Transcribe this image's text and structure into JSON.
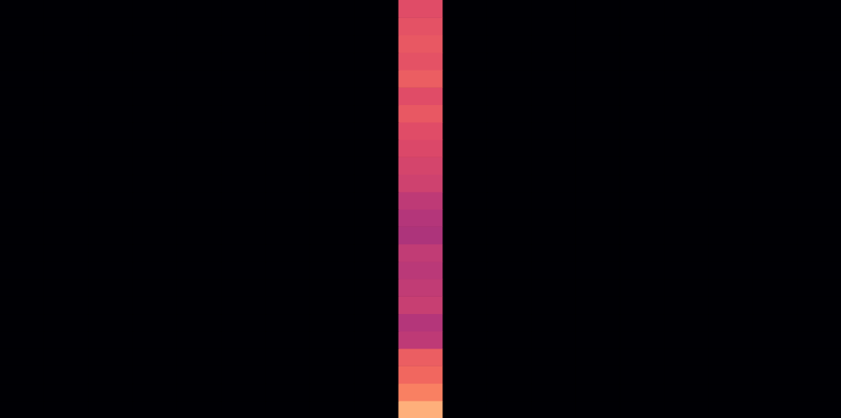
{
  "chart_data": {
    "type": "heatmap",
    "tick_labels": false,
    "xlim": [
      0,
      19
    ],
    "ylim": [
      0,
      24
    ],
    "zlim": [
      0,
      1
    ],
    "values": [
      [
        0,
        0,
        0,
        0,
        0,
        0,
        0,
        0,
        0,
        0.95,
        0,
        0,
        0,
        0,
        0,
        0,
        0,
        0,
        0
      ],
      [
        0,
        0,
        0,
        0,
        0,
        0,
        0,
        0,
        0,
        0.9,
        0,
        0,
        0,
        0,
        0,
        0,
        0,
        0,
        0
      ],
      [
        0,
        0,
        0,
        0,
        0,
        0,
        0,
        0,
        0,
        0.85,
        0,
        0,
        0,
        0,
        0,
        0,
        0,
        0,
        0
      ],
      [
        0,
        0,
        0,
        0,
        0,
        0,
        0,
        0,
        0,
        0.82,
        0,
        0,
        0,
        0,
        0,
        0,
        0,
        0,
        0
      ],
      [
        0,
        0,
        0,
        0,
        0,
        0,
        0,
        0,
        0,
        0.65,
        0,
        0,
        0,
        0,
        0,
        0,
        0,
        0,
        0
      ],
      [
        0,
        0,
        0,
        0,
        0,
        0,
        0,
        0,
        0,
        0.62,
        0,
        0,
        0,
        0,
        0,
        0,
        0,
        0,
        0
      ],
      [
        0,
        0,
        0,
        0,
        0,
        0,
        0,
        0,
        0,
        0.68,
        0,
        0,
        0,
        0,
        0,
        0,
        0,
        0,
        0
      ],
      [
        0,
        0,
        0,
        0,
        0,
        0,
        0,
        0,
        0,
        0.66,
        0,
        0,
        0,
        0,
        0,
        0,
        0,
        0,
        0
      ],
      [
        0,
        0,
        0,
        0,
        0,
        0,
        0,
        0,
        0,
        0.64,
        0,
        0,
        0,
        0,
        0,
        0,
        0,
        0,
        0
      ],
      [
        0,
        0,
        0,
        0,
        0,
        0,
        0,
        0,
        0,
        0.66,
        0,
        0,
        0,
        0,
        0,
        0,
        0,
        0,
        0
      ],
      [
        0,
        0,
        0,
        0,
        0,
        0,
        0,
        0,
        0,
        0.6,
        0,
        0,
        0,
        0,
        0,
        0,
        0,
        0,
        0
      ],
      [
        0,
        0,
        0,
        0,
        0,
        0,
        0,
        0,
        0,
        0.62,
        0,
        0,
        0,
        0,
        0,
        0,
        0,
        0,
        0
      ],
      [
        0,
        0,
        0,
        0,
        0,
        0,
        0,
        0,
        0,
        0.65,
        0,
        0,
        0,
        0,
        0,
        0,
        0,
        0,
        0
      ],
      [
        0,
        0,
        0,
        0,
        0,
        0,
        0,
        0,
        0,
        0.7,
        0,
        0,
        0,
        0,
        0,
        0,
        0,
        0,
        0
      ],
      [
        0,
        0,
        0,
        0,
        0,
        0,
        0,
        0,
        0,
        0.72,
        0,
        0,
        0,
        0,
        0,
        0,
        0,
        0,
        0
      ],
      [
        0,
        0,
        0,
        0,
        0,
        0,
        0,
        0,
        0,
        0.74,
        0,
        0,
        0,
        0,
        0,
        0,
        0,
        0,
        0
      ],
      [
        0,
        0,
        0,
        0,
        0,
        0,
        0,
        0,
        0,
        0.76,
        0,
        0,
        0,
        0,
        0,
        0,
        0,
        0,
        0
      ],
      [
        0,
        0,
        0,
        0,
        0,
        0,
        0,
        0,
        0,
        0.8,
        0,
        0,
        0,
        0,
        0,
        0,
        0,
        0,
        0
      ],
      [
        0,
        0,
        0,
        0,
        0,
        0,
        0,
        0,
        0,
        0.76,
        0,
        0,
        0,
        0,
        0,
        0,
        0,
        0,
        0
      ],
      [
        0,
        0,
        0,
        0,
        0,
        0,
        0,
        0,
        0,
        0.82,
        0,
        0,
        0,
        0,
        0,
        0,
        0,
        0,
        0
      ],
      [
        0,
        0,
        0,
        0,
        0,
        0,
        0,
        0,
        0,
        0.78,
        0,
        0,
        0,
        0,
        0,
        0,
        0,
        0,
        0
      ],
      [
        0,
        0,
        0,
        0,
        0,
        0,
        0,
        0,
        0,
        0.8,
        0,
        0,
        0,
        0,
        0,
        0,
        0,
        0,
        0
      ],
      [
        0,
        0,
        0,
        0,
        0,
        0,
        0,
        0,
        0,
        0.78,
        0,
        0,
        0,
        0,
        0,
        0,
        0,
        0,
        0
      ],
      [
        0,
        0,
        0,
        0,
        0,
        0,
        0,
        0,
        0,
        0.76,
        0,
        0,
        0,
        0,
        0,
        0,
        0,
        0,
        0
      ]
    ]
  }
}
